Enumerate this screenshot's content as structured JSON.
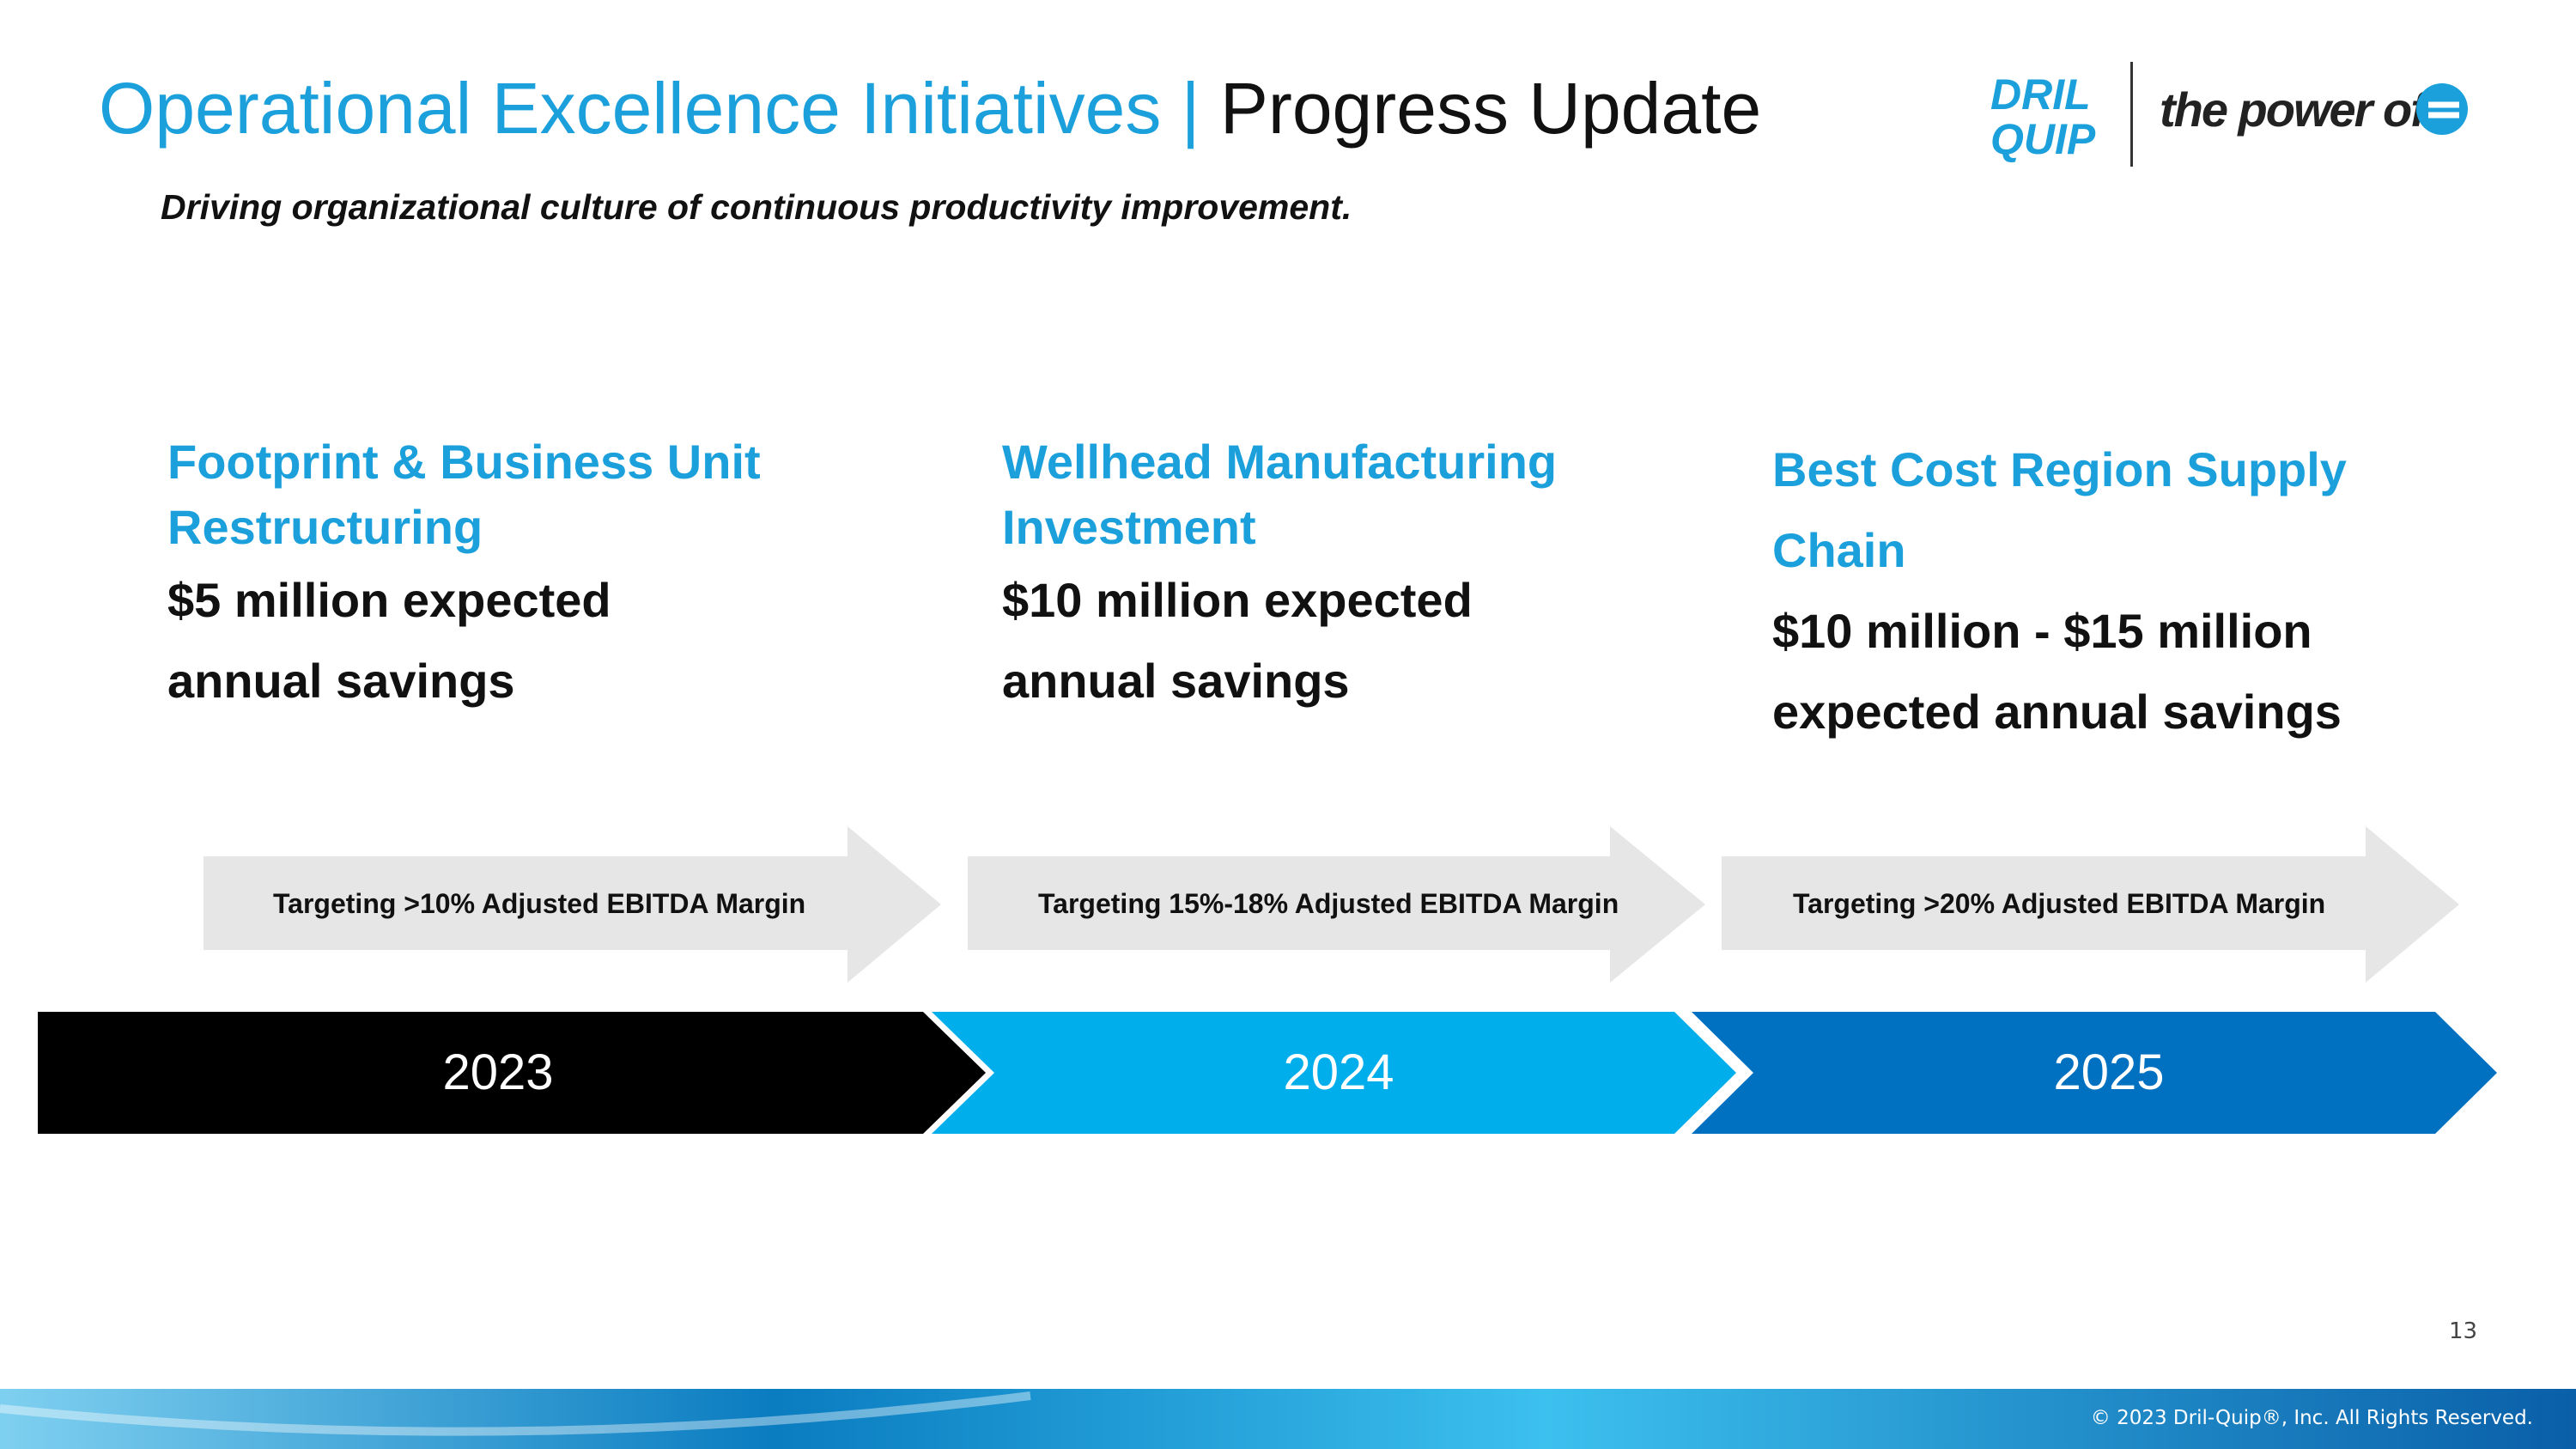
{
  "header": {
    "title_main": "Operational Excellence Initiatives",
    "title_separator": "|",
    "title_sub": "Progress Update",
    "subtitle": "Driving organizational culture of continuous productivity improvement.",
    "logo_top": "DRIL",
    "logo_bottom": "QUIP",
    "tagline": "the power of"
  },
  "initiatives": [
    {
      "title_lines": [
        "Footprint & Business Unit",
        "Restructuring"
      ],
      "savings_lines": [
        "$5 million expected",
        "annual savings"
      ],
      "target": "Targeting >10% Adjusted EBITDA Margin",
      "year": "2023"
    },
    {
      "title_lines": [
        "Wellhead Manufacturing",
        "Investment"
      ],
      "savings_lines": [
        "$10 million expected",
        "annual savings"
      ],
      "target": "Targeting 15%-18% Adjusted EBITDA Margin",
      "year": "2024"
    },
    {
      "title_lines": [
        "Best Cost Region Supply",
        "Chain"
      ],
      "savings_lines": [
        "$10 million - $15 million",
        "expected annual savings"
      ],
      "target": "Targeting >20% Adjusted EBITDA Margin",
      "year": "2025"
    }
  ],
  "footer": {
    "page_number": "13",
    "copyright": "© 2023 Dril-Quip®, Inc. All Rights Reserved."
  }
}
